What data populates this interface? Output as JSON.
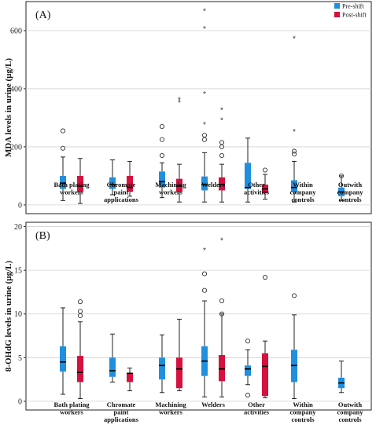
{
  "colors": {
    "pre": "#1f8fde",
    "post": "#d4113f"
  },
  "legend": {
    "pre": "Pre-shift",
    "post": "Post-shift"
  },
  "categories": [
    [
      "Bath plating",
      "workers"
    ],
    [
      "Chromate",
      "paint",
      "applications"
    ],
    [
      "Machining",
      "workers"
    ],
    [
      "Welders"
    ],
    [
      "Other",
      "activities"
    ],
    [
      "Within",
      "company",
      "controls"
    ],
    [
      "Outwith",
      "company",
      "controls"
    ]
  ],
  "chart_data": [
    {
      "type": "boxplot",
      "panel": "(A)",
      "ylabel": "MDA levels in urine (µg/L)",
      "ylim": [
        -30,
        700
      ],
      "yticks": [
        0,
        200,
        400,
        600
      ],
      "grid": true,
      "legend_position": "top-right",
      "series": [
        {
          "key": "pre",
          "boxes": [
            {
              "q1": 55,
              "median": 75,
              "q3": 100,
              "low": 15,
              "high": 165,
              "outliers": [
                195,
                255
              ],
              "extremes": []
            },
            {
              "q1": 55,
              "median": 70,
              "q3": 95,
              "low": 35,
              "high": 155,
              "outliers": [],
              "extremes": []
            },
            {
              "q1": 60,
              "median": 80,
              "q3": 115,
              "low": 25,
              "high": 145,
              "outliers": [
                170,
                225,
                270
              ],
              "extremes": []
            },
            {
              "q1": 50,
              "median": 70,
              "q3": 98,
              "low": 10,
              "high": 180,
              "outliers": [
                225,
                240
              ],
              "extremes": [
                280,
                385,
                610,
                670
              ]
            },
            {
              "q1": 55,
              "median": 60,
              "q3": 145,
              "low": 10,
              "high": 230,
              "outliers": [],
              "extremes": []
            },
            {
              "q1": 45,
              "median": 60,
              "q3": 85,
              "low": 10,
              "high": 150,
              "outliers": [
                175,
                185
              ],
              "extremes": [
                255,
                575
              ]
            },
            {
              "q1": 30,
              "median": 45,
              "q3": 60,
              "low": 15,
              "high": 100,
              "outliers": [
                100
              ],
              "extremes": []
            }
          ]
        },
        {
          "key": "post",
          "boxes": [
            {
              "q1": 45,
              "median": 65,
              "q3": 100,
              "low": 5,
              "high": 160,
              "outliers": [],
              "extremes": []
            },
            {
              "q1": 45,
              "median": 60,
              "q3": 100,
              "low": 30,
              "high": 150,
              "outliers": [],
              "extremes": []
            },
            {
              "q1": 45,
              "median": 65,
              "q3": 90,
              "low": 10,
              "high": 140,
              "outliers": [],
              "extremes": [
                355,
                365
              ]
            },
            {
              "q1": 50,
              "median": 70,
              "q3": 95,
              "low": 10,
              "high": 140,
              "outliers": [
                170,
                200,
                215
              ],
              "extremes": [
                295,
                330
              ]
            },
            {
              "q1": 40,
              "median": 55,
              "q3": 70,
              "low": 20,
              "high": 105,
              "outliers": [
                120
              ],
              "extremes": []
            }
          ]
        }
      ]
    },
    {
      "type": "boxplot",
      "panel": "(B)",
      "ylabel": "8-OHdG levels in urine (µg/L)",
      "ylim": [
        -1,
        20.5
      ],
      "yticks": [
        0,
        5,
        10,
        15,
        20
      ],
      "grid": true,
      "series": [
        {
          "key": "pre",
          "boxes": [
            {
              "q1": 3.4,
              "median": 4.5,
              "q3": 6.3,
              "low": 0.8,
              "high": 10.7,
              "outliers": [],
              "extremes": []
            },
            {
              "q1": 2.8,
              "median": 3.5,
              "q3": 5.0,
              "low": 2.2,
              "high": 7.7,
              "outliers": [],
              "extremes": []
            },
            {
              "q1": 2.5,
              "median": 4.1,
              "q3": 5.0,
              "low": 1.0,
              "high": 7.6,
              "outliers": [],
              "extremes": []
            },
            {
              "q1": 2.9,
              "median": 4.6,
              "q3": 6.3,
              "low": 0.5,
              "high": 11.5,
              "outliers": [
                12.7,
                14.6
              ],
              "extremes": [
                17.4
              ]
            },
            {
              "q1": 2.9,
              "median": 3.7,
              "q3": 4.1,
              "low": 1.9,
              "high": 5.9,
              "outliers": [
                0.7,
                6.9
              ],
              "extremes": []
            },
            {
              "q1": 2.2,
              "median": 4.1,
              "q3": 5.9,
              "low": 0.3,
              "high": 9.9,
              "outliers": [
                12.1
              ],
              "extremes": []
            },
            {
              "q1": 1.5,
              "median": 2.1,
              "q3": 2.7,
              "low": 1.0,
              "high": 4.6,
              "outliers": [],
              "extremes": []
            }
          ]
        },
        {
          "key": "post",
          "boxes": [
            {
              "q1": 2.2,
              "median": 3.3,
              "q3": 5.2,
              "low": 0.3,
              "high": 9.1,
              "outliers": [
                9.8,
                10.3,
                11.4
              ],
              "extremes": []
            },
            {
              "q1": 2.2,
              "median": 3.2,
              "q3": 3.2,
              "low": 1.2,
              "high": 3.8,
              "outliers": [],
              "extremes": []
            },
            {
              "q1": 1.5,
              "median": 3.7,
              "q3": 5.0,
              "low": 1.2,
              "high": 9.4,
              "outliers": [],
              "extremes": []
            },
            {
              "q1": 2.3,
              "median": 3.7,
              "q3": 5.3,
              "low": 0.5,
              "high": 10.0,
              "outliers": [
                10.0,
                11.5
              ],
              "extremes": [
                18.5
              ]
            },
            {
              "q1": 0.6,
              "median": 4.0,
              "q3": 5.5,
              "low": 0.4,
              "high": 6.9,
              "outliers": [
                14.2
              ],
              "extremes": []
            }
          ]
        }
      ]
    }
  ]
}
